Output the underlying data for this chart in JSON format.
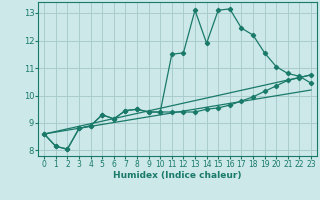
{
  "title": "",
  "xlabel": "Humidex (Indice chaleur)",
  "bg_color": "#cce8e8",
  "grid_color": "#aacccc",
  "line_color": "#1a7a6a",
  "xlim": [
    -0.5,
    23.5
  ],
  "ylim": [
    7.8,
    13.4
  ],
  "yticks": [
    8,
    9,
    10,
    11,
    12,
    13
  ],
  "xticks": [
    0,
    1,
    2,
    3,
    4,
    5,
    6,
    7,
    8,
    9,
    10,
    11,
    12,
    13,
    14,
    15,
    16,
    17,
    18,
    19,
    20,
    21,
    22,
    23
  ],
  "series1_x": [
    0,
    1,
    2,
    3,
    4,
    5,
    6,
    7,
    8,
    9,
    10,
    11,
    12,
    13,
    14,
    15,
    16,
    17,
    18,
    19,
    20,
    21,
    22,
    23
  ],
  "series1_y": [
    8.6,
    8.15,
    8.05,
    8.8,
    8.9,
    9.3,
    9.15,
    9.45,
    9.5,
    9.4,
    9.4,
    11.5,
    11.55,
    13.1,
    11.9,
    13.1,
    13.15,
    12.45,
    12.2,
    11.55,
    11.05,
    10.8,
    10.7,
    10.45
  ],
  "series2_x": [
    0,
    1,
    2,
    3,
    4,
    5,
    6,
    7,
    8,
    9,
    10,
    11,
    12,
    13,
    14,
    15,
    16,
    17,
    18,
    19,
    20,
    21,
    22,
    23
  ],
  "series2_y": [
    8.6,
    8.15,
    8.05,
    8.8,
    8.9,
    9.3,
    9.15,
    9.45,
    9.5,
    9.4,
    9.4,
    9.4,
    9.4,
    9.4,
    9.5,
    9.55,
    9.65,
    9.8,
    9.95,
    10.15,
    10.35,
    10.55,
    10.65,
    10.75
  ],
  "line3_x": [
    0,
    23
  ],
  "line3_y": [
    8.6,
    10.75
  ],
  "line4_x": [
    0,
    23
  ],
  "line4_y": [
    8.6,
    10.2
  ]
}
